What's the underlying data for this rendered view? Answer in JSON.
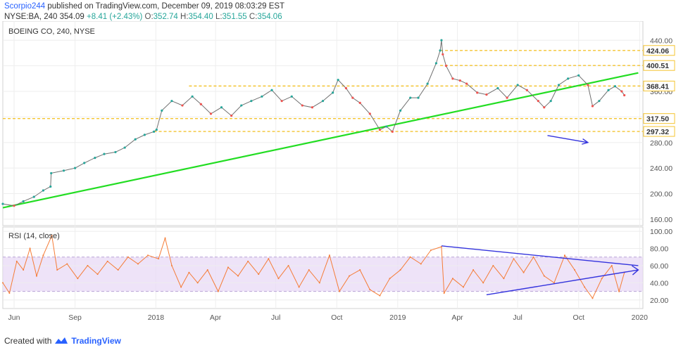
{
  "header": {
    "author": "Scorpio244",
    "published_text": "published on TradingView.com, December 09, 2019 08:03:29 EST",
    "symbol": "NYSE:BA, 240",
    "last": "354.09",
    "change": "+8.41 (+2.43%)",
    "o_label": "O:",
    "o_value": "352.74",
    "h_label": "H:",
    "h_value": "354.40",
    "l_label": "L:",
    "l_value": "351.55",
    "c_label": "C:",
    "c_value": "354.06"
  },
  "footer": {
    "created_with": "Created with",
    "brand": "TradingView"
  },
  "colors": {
    "candle_up": "#26a69a",
    "candle_down": "#ef5350",
    "price_line": "#707070",
    "trendline": "#22dd22",
    "level_line": "#f4c430",
    "rsi_line": "#f57c37",
    "rsi_band": "#e8d9f5",
    "annotation": "#3333dd"
  },
  "chart_data": [
    {
      "type": "line",
      "title": "BOEING CO, 240, NYSE",
      "x": [
        "2017-05-15",
        "2017-06-01",
        "2017-06-15",
        "2017-07-01",
        "2017-07-15",
        "2017-07-26",
        "2017-07-27",
        "2017-08-15",
        "2017-09-01",
        "2017-09-15",
        "2017-10-01",
        "2017-10-15",
        "2017-11-01",
        "2017-11-15",
        "2017-12-01",
        "2017-12-15",
        "2017-12-29",
        "2018-01-02",
        "2018-01-10",
        "2018-01-25",
        "2018-02-10",
        "2018-02-25",
        "2018-03-10",
        "2018-03-25",
        "2018-04-10",
        "2018-04-25",
        "2018-05-10",
        "2018-05-25",
        "2018-06-10",
        "2018-06-25",
        "2018-07-10",
        "2018-07-25",
        "2018-08-10",
        "2018-08-25",
        "2018-09-10",
        "2018-09-25",
        "2018-10-03",
        "2018-10-15",
        "2018-10-25",
        "2018-11-05",
        "2018-11-20",
        "2018-12-05",
        "2018-12-15",
        "2018-12-24",
        "2019-01-05",
        "2019-01-20",
        "2019-02-01",
        "2019-02-15",
        "2019-02-28",
        "2019-03-06",
        "2019-03-08",
        "2019-03-10",
        "2019-03-15",
        "2019-03-25",
        "2019-04-05",
        "2019-04-15",
        "2019-05-01",
        "2019-05-15",
        "2019-06-01",
        "2019-06-15",
        "2019-07-01",
        "2019-07-15",
        "2019-08-01",
        "2019-08-10",
        "2019-08-20",
        "2019-09-01",
        "2019-09-15",
        "2019-10-01",
        "2019-10-15",
        "2019-10-22",
        "2019-11-01",
        "2019-11-15",
        "2019-11-25",
        "2019-12-05",
        "2019-12-09"
      ],
      "y": [
        184,
        181,
        188,
        195,
        205,
        211,
        232,
        236,
        240,
        248,
        256,
        262,
        265,
        272,
        285,
        292,
        297,
        300,
        330,
        345,
        338,
        352,
        340,
        325,
        335,
        322,
        338,
        345,
        352,
        362,
        345,
        352,
        338,
        335,
        345,
        358,
        378,
        365,
        350,
        342,
        325,
        300,
        305,
        297,
        330,
        350,
        350,
        372,
        404,
        424,
        440,
        418,
        400,
        380,
        377,
        372,
        358,
        355,
        365,
        350,
        370,
        362,
        345,
        335,
        345,
        370,
        380,
        385,
        370,
        337,
        345,
        362,
        368,
        360,
        354
      ],
      "ylim": [
        150,
        470
      ],
      "y_ticks": [
        160,
        200,
        240,
        280,
        320,
        360,
        400,
        440
      ],
      "x_ticks": [
        {
          "x": "2017-06-01",
          "label": "Jun"
        },
        {
          "x": "2017-09-01",
          "label": "Sep"
        },
        {
          "x": "2018-01-01",
          "label": "2018"
        },
        {
          "x": "2018-04-01",
          "label": "Apr"
        },
        {
          "x": "2018-07-01",
          "label": "Jul"
        },
        {
          "x": "2018-10-01",
          "label": "Oct"
        },
        {
          "x": "2019-01-01",
          "label": "2019"
        },
        {
          "x": "2019-04-01",
          "label": "Apr"
        },
        {
          "x": "2019-07-01",
          "label": "Jul"
        },
        {
          "x": "2019-10-01",
          "label": "Oct"
        },
        {
          "x": "2020-01-01",
          "label": "2020"
        }
      ],
      "levels": [
        {
          "value": 424.06,
          "label": "424.06",
          "from": "2019-03-06"
        },
        {
          "value": 400.51,
          "label": "400.51",
          "from": "2019-03-06"
        },
        {
          "value": 368.41,
          "label": "368.41",
          "from": "2018-02-20"
        },
        {
          "value": 317.5,
          "label": "317.50",
          "from": "2017-05-15"
        },
        {
          "value": 297.32,
          "label": "297.32",
          "from": "2017-12-29"
        }
      ],
      "trendline": {
        "x1": "2017-05-15",
        "y1": 178,
        "x2": "2019-12-30",
        "y2": 389
      },
      "annotation_arrow": {
        "x1": "2019-08-15",
        "y1": 291,
        "x2": "2019-10-15",
        "y2": 280
      },
      "grid": true
    },
    {
      "type": "line",
      "title": "RSI (14, close)",
      "x": [
        "2017-05-15",
        "2017-05-25",
        "2017-06-05",
        "2017-06-15",
        "2017-06-25",
        "2017-07-05",
        "2017-07-15",
        "2017-07-28",
        "2017-08-05",
        "2017-08-20",
        "2017-09-05",
        "2017-09-20",
        "2017-10-05",
        "2017-10-20",
        "2017-11-05",
        "2017-11-20",
        "2017-12-05",
        "2017-12-20",
        "2018-01-05",
        "2018-01-15",
        "2018-01-25",
        "2018-02-08",
        "2018-02-20",
        "2018-03-05",
        "2018-03-20",
        "2018-04-05",
        "2018-04-20",
        "2018-05-05",
        "2018-05-20",
        "2018-06-05",
        "2018-06-20",
        "2018-07-05",
        "2018-07-20",
        "2018-08-05",
        "2018-08-20",
        "2018-09-05",
        "2018-09-20",
        "2018-10-05",
        "2018-10-20",
        "2018-11-05",
        "2018-11-20",
        "2018-12-05",
        "2018-12-20",
        "2019-01-05",
        "2019-01-20",
        "2019-02-05",
        "2019-02-20",
        "2019-03-08",
        "2019-03-12",
        "2019-03-25",
        "2019-04-10",
        "2019-04-25",
        "2019-05-10",
        "2019-05-25",
        "2019-06-10",
        "2019-06-25",
        "2019-07-10",
        "2019-07-25",
        "2019-08-10",
        "2019-08-25",
        "2019-09-10",
        "2019-09-25",
        "2019-10-10",
        "2019-10-22",
        "2019-11-05",
        "2019-11-20",
        "2019-12-01",
        "2019-12-09"
      ],
      "y": [
        40,
        28,
        65,
        55,
        80,
        48,
        72,
        95,
        55,
        62,
        45,
        60,
        50,
        65,
        55,
        70,
        62,
        72,
        68,
        92,
        60,
        35,
        52,
        40,
        55,
        30,
        58,
        48,
        65,
        50,
        68,
        45,
        60,
        35,
        55,
        40,
        72,
        30,
        48,
        55,
        32,
        25,
        45,
        55,
        70,
        62,
        78,
        82,
        28,
        45,
        35,
        55,
        40,
        60,
        45,
        68,
        52,
        70,
        48,
        40,
        72,
        55,
        35,
        22,
        45,
        60,
        30,
        52
      ],
      "ylim": [
        10,
        105
      ],
      "y_ticks": [
        20,
        40,
        60,
        80,
        100
      ],
      "band": [
        30,
        70
      ],
      "upper_trend": {
        "x1": "2019-03-08",
        "y1": 83,
        "x2": "2019-12-30",
        "y2": 60
      },
      "lower_trend": {
        "x1": "2019-05-15",
        "y1": 26,
        "x2": "2019-12-30",
        "y2": 55
      },
      "grid": true
    }
  ]
}
